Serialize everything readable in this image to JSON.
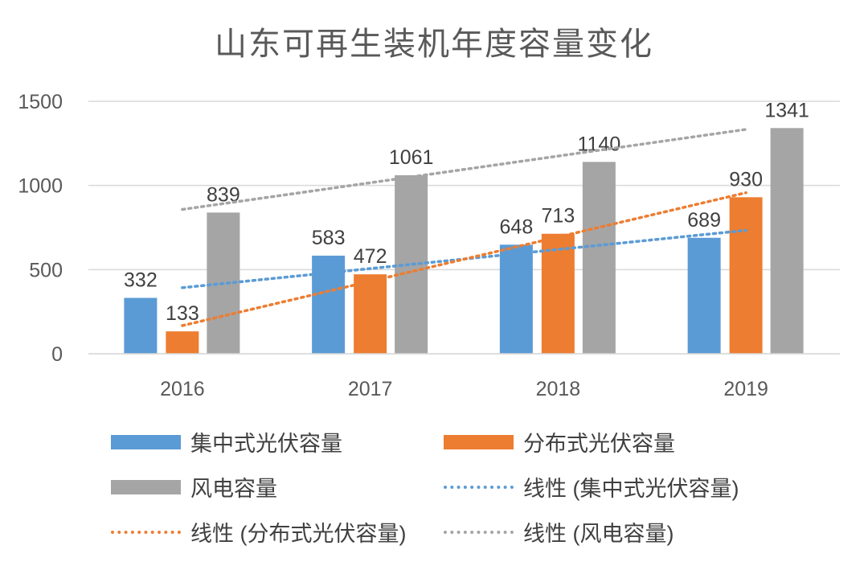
{
  "chart_data": {
    "type": "bar",
    "title": "山东可再生装机年度容量变化",
    "categories": [
      "2016",
      "2017",
      "2018",
      "2019"
    ],
    "series": [
      {
        "name": "集中式光伏容量",
        "values": [
          332,
          583,
          648,
          689
        ],
        "color": "#5B9BD5"
      },
      {
        "name": "分布式光伏容量",
        "values": [
          133,
          472,
          713,
          930
        ],
        "color": "#ED7D31"
      },
      {
        "name": "风电容量",
        "values": [
          839,
          1061,
          1140,
          1341
        ],
        "color": "#A5A5A5"
      }
    ],
    "trendlines": [
      {
        "name": "线性 (集中式光伏容量)",
        "type": "linear",
        "series": 0,
        "color": "#5B9BD5"
      },
      {
        "name": "线性 (分布式光伏容量)",
        "type": "linear",
        "series": 1,
        "color": "#ED7D31"
      },
      {
        "name": "线性 (风电容量)",
        "type": "linear",
        "series": 2,
        "color": "#A5A5A5"
      }
    ],
    "ylim": [
      0,
      1500
    ],
    "yticks": [
      "0",
      "500",
      "1000",
      "1500"
    ],
    "grid": true,
    "data_labels": true,
    "legend_position": "bottom"
  }
}
